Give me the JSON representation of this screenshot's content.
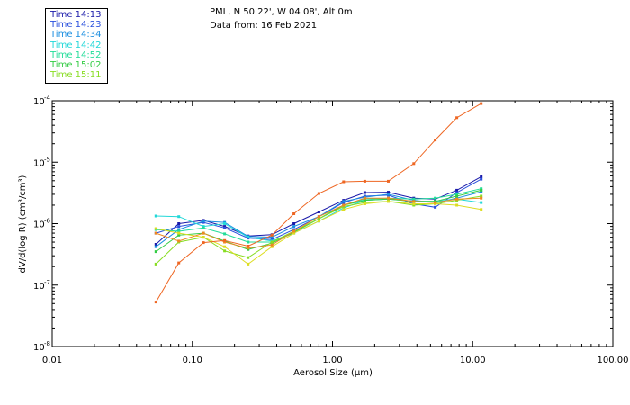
{
  "legend": {
    "entries": [
      {
        "label": "Time 14:13",
        "color": "#1a1aaa"
      },
      {
        "label": "Time 14:23",
        "color": "#2a50dd"
      },
      {
        "label": "Time 14:34",
        "color": "#1a8ee0"
      },
      {
        "label": "Time 14:42",
        "color": "#22d8d8"
      },
      {
        "label": "Time 14:52",
        "color": "#22dd99"
      },
      {
        "label": "Time 15:02",
        "color": "#33cc44"
      },
      {
        "label": "Time 15:11",
        "color": "#88dd22"
      }
    ]
  },
  "header": {
    "location": "PML, N 50 22', W 04 08', Alt 0m",
    "date": "Data from: 16 Feb 2021"
  },
  "chart_data": {
    "type": "line",
    "title": "PML, N 50 22', W 04 08', Alt 0m",
    "xlabel": "Aerosol Size (µm)",
    "ylabel": "dV/d(log R) (cm³/cm³)",
    "xscale": "log",
    "yscale": "log",
    "xlim": [
      0.01,
      100
    ],
    "ylim": [
      1e-08,
      0.0001
    ],
    "xticks": [
      {
        "value": 0.01,
        "label": "0.01"
      },
      {
        "value": 0.1,
        "label": "0.10"
      },
      {
        "value": 1,
        "label": "1.00"
      },
      {
        "value": 10,
        "label": "10.00"
      },
      {
        "value": 100,
        "label": "100.00"
      }
    ],
    "yticks": [
      {
        "value": 1e-08,
        "mant": "10",
        "exp": "-8"
      },
      {
        "value": 1e-07,
        "mant": "10",
        "exp": "-7"
      },
      {
        "value": 1e-06,
        "mant": "10",
        "exp": "-6"
      },
      {
        "value": 1e-05,
        "mant": "10",
        "exp": "-5"
      },
      {
        "value": 0.0001,
        "mant": "10",
        "exp": "-4"
      }
    ],
    "x": [
      0.055,
      0.08,
      0.12,
      0.17,
      0.25,
      0.37,
      0.53,
      0.8,
      1.2,
      1.7,
      2.5,
      3.8,
      5.4,
      7.7,
      11.5
    ],
    "series": [
      {
        "name": "Time 14:13",
        "color": "#1a1aaa",
        "values": [
          4.6e-07,
          1e-06,
          1.13e-06,
          9e-07,
          6.3e-07,
          6.6e-07,
          1e-06,
          1.55e-06,
          2.4e-06,
          3.2e-06,
          3.25e-06,
          2.6e-06,
          2.5e-06,
          3.5e-06,
          5.8e-06
        ]
      },
      {
        "name": "Time 14:23",
        "color": "#2a50dd",
        "values": [
          7e-07,
          9e-07,
          1.05e-06,
          8.5e-07,
          5.8e-07,
          5.5e-07,
          8e-07,
          1.3e-06,
          2.2e-06,
          2.8e-06,
          2.9e-06,
          2.1e-06,
          1.85e-06,
          3.2e-06,
          5.3e-06
        ]
      },
      {
        "name": "Time 14:34",
        "color": "#1a8ee0",
        "values": [
          4.2e-07,
          8e-07,
          1.1e-06,
          1.05e-06,
          6.2e-07,
          6e-07,
          9e-07,
          1.3e-06,
          2.3e-06,
          2.7e-06,
          3e-06,
          2.4e-06,
          2.2e-06,
          2.6e-06,
          3.3e-06
        ]
      },
      {
        "name": "Time 14:42",
        "color": "#22d8d8",
        "values": [
          1.33e-06,
          1.3e-06,
          9e-07,
          1e-06,
          6e-07,
          5.2e-07,
          7e-07,
          1.1e-06,
          1.8e-06,
          2.4e-06,
          2.5e-06,
          2.3e-06,
          2.3e-06,
          2.5e-06,
          2.2e-06
        ]
      },
      {
        "name": "Time 14:52",
        "color": "#22dd99",
        "values": [
          8e-07,
          7.5e-07,
          8.5e-07,
          6.8e-07,
          5e-07,
          5e-07,
          7.5e-07,
          1.2e-06,
          2e-06,
          2.5e-06,
          2.6e-06,
          2.5e-06,
          2.6e-06,
          3e-06,
          3.7e-06
        ]
      },
      {
        "name": "Time 15:02",
        "color": "#33cc44",
        "values": [
          3.5e-07,
          6.5e-07,
          7e-07,
          5.2e-07,
          3.8e-07,
          4.8e-07,
          7.2e-07,
          1.2e-06,
          2e-06,
          2.4e-06,
          2.5e-06,
          2.3e-06,
          2.3e-06,
          2.8e-06,
          3.5e-06
        ]
      },
      {
        "name": "Time 15:11",
        "color": "#88dd22",
        "values": [
          2.2e-07,
          5e-07,
          6e-07,
          3.6e-07,
          2.8e-07,
          5e-07,
          7.5e-07,
          1.2e-06,
          1.9e-06,
          2.2e-06,
          2.3e-06,
          2e-06,
          2.1e-06,
          2.4e-06,
          2.8e-06
        ]
      },
      {
        "name": "",
        "color": "#dddd22",
        "values": [
          8.3e-07,
          7e-07,
          6e-07,
          4.2e-07,
          2.2e-07,
          4.2e-07,
          7e-07,
          1.1e-06,
          1.7e-06,
          2.1e-06,
          2.3e-06,
          2.1e-06,
          2.1e-06,
          2e-06,
          1.7e-06
        ]
      },
      {
        "name": "",
        "color": "#ee8822",
        "values": [
          7e-07,
          5.2e-07,
          7e-07,
          5e-07,
          4e-07,
          4.5e-07,
          7.5e-07,
          1.3e-06,
          2e-06,
          2.6e-06,
          2.6e-06,
          2.3e-06,
          2.2e-06,
          2.5e-06,
          2.6e-06
        ]
      },
      {
        "name": "",
        "color": "#ee6622",
        "values": [
          5.3e-08,
          2.3e-07,
          4.9e-07,
          5.3e-07,
          4.3e-07,
          6.5e-07,
          1.45e-06,
          3.1e-06,
          4.8e-06,
          4.9e-06,
          4.9e-06,
          9.5e-06,
          2.3e-05,
          5.3e-05,
          9e-05
        ]
      }
    ]
  }
}
